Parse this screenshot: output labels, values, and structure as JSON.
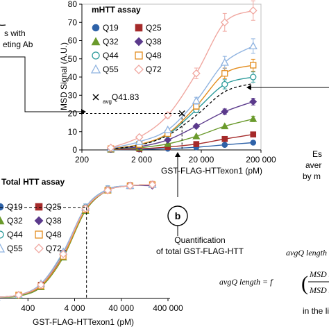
{
  "figure": {
    "annotations": {
      "left_top_lines": [
        "s with",
        "eting Ab"
      ],
      "b_label": "b",
      "quantification": [
        "Quantification",
        "of total GST-FLAG-HTT"
      ],
      "right_lines": [
        "Es",
        "aver",
        "by m"
      ],
      "formula_small": "avgQ length",
      "formula_main": "avgQ length = f",
      "frac_num": "MSD Signal with",
      "frac_den": "MSD Signal with r",
      "in_the": "in the li"
    },
    "colors": {
      "Q19": "#2e62a8",
      "Q25": "#a52a2a",
      "Q32": "#6a9a2c",
      "Q38": "#5b3a8c",
      "Q44": "#2a9a9a",
      "Q48": "#e38c1c",
      "Q55": "#8fb3e0",
      "Q72": "#f0a7a0",
      "ref": "#000000"
    },
    "icons": {
      "circle-marker": "filled circle",
      "square-marker": "filled square",
      "triangle-marker": "filled triangle",
      "diamond-marker": "filled diamond",
      "open-circle-marker": "open circle",
      "open-square-marker": "open square",
      "open-triangle-marker": "open triangle",
      "open-diamond-marker": "open diamond",
      "cross-marker": "x cross"
    }
  },
  "chart_data": [
    {
      "type": "scatter",
      "title": "mHTT assay",
      "xlabel": "GST-FLAG-HTTexon1 (pM)",
      "ylabel": "MSD Signal (A.U.)",
      "xscale": "log",
      "xlim": [
        200,
        200000
      ],
      "ylim": [
        0,
        80
      ],
      "xticks": [
        "200",
        "2 000",
        "20 000",
        "200 000"
      ],
      "yticks": [
        "0",
        "10",
        "20",
        "30",
        "40",
        "50",
        "60",
        "70",
        "80"
      ],
      "legend_position": "top-left",
      "grid": false,
      "x": [
        610,
        1830,
        5490,
        16500,
        49400,
        148000
      ],
      "series": [
        {
          "name": "Q19",
          "marker": "circle",
          "filled": true,
          "values": [
            0.1,
            0.3,
            0.7,
            1.5,
            2.8,
            4.0
          ]
        },
        {
          "name": "Q25",
          "marker": "square",
          "filled": true,
          "values": [
            0.2,
            0.6,
            1.6,
            3.2,
            6.0,
            8.5
          ]
        },
        {
          "name": "Q32",
          "marker": "triangle",
          "filled": true,
          "values": [
            0.3,
            1.2,
            3.3,
            7.5,
            13.0,
            17.0
          ]
        },
        {
          "name": "Q38",
          "marker": "diamond",
          "filled": true,
          "values": [
            0.5,
            1.8,
            5.5,
            13.0,
            21.0,
            26.5
          ]
        },
        {
          "name": "Q44",
          "marker": "circle",
          "filled": false,
          "values": [
            0.6,
            2.8,
            8.5,
            22.0,
            36.0,
            40.0
          ]
        },
        {
          "name": "Q48",
          "marker": "square",
          "filled": false,
          "values": [
            0.7,
            3.0,
            9.0,
            24.0,
            42.0,
            46.5
          ]
        },
        {
          "name": "Q55",
          "marker": "triangle",
          "filled": false,
          "values": [
            0.9,
            4.5,
            11.0,
            27.0,
            48.0,
            57.0
          ]
        },
        {
          "name": "Q72",
          "marker": "diamond",
          "filled": false,
          "values": [
            1.2,
            7.0,
            19.0,
            42.0,
            70.0,
            76.5
          ]
        }
      ],
      "reference": {
        "label": "avgQ41.83",
        "prefix": "avg",
        "suffix": "Q41.83",
        "marker": "cross",
        "x": 9500,
        "y": 20
      },
      "reference_curve": {
        "x": [
          610,
          1830,
          5490,
          16500,
          49400,
          148000
        ],
        "values": [
          0.6,
          2.6,
          8.0,
          19.0,
          32.0,
          36.5
        ]
      }
    },
    {
      "type": "scatter",
      "title": "Total HTT assay",
      "xlabel": "GST-FLAG-HTTexon1 (pM)",
      "xscale": "log",
      "xlim": [
        40,
        400000
      ],
      "ymax_normalized": 1.0,
      "xticks": [
        "400",
        "4 000",
        "40 000",
        "400 000"
      ],
      "legend_position": "top-left",
      "grid": false,
      "x": [
        84,
        253,
        760,
        2280,
        6840,
        20500,
        61600,
        185000
      ],
      "series": [
        {
          "name": "Q19",
          "marker": "circle",
          "filled": true,
          "values": [
            0.01,
            0.03,
            0.11,
            0.38,
            0.78,
            0.95,
            0.99,
            1.0
          ]
        },
        {
          "name": "Q25",
          "marker": "square",
          "filled": true,
          "values": [
            0.01,
            0.03,
            0.12,
            0.4,
            0.79,
            0.95,
            0.99,
            1.0
          ]
        },
        {
          "name": "Q32",
          "marker": "triangle",
          "filled": true,
          "values": [
            0.01,
            0.02,
            0.1,
            0.36,
            0.77,
            0.95,
            0.99,
            1.0
          ]
        },
        {
          "name": "Q38",
          "marker": "diamond",
          "filled": true,
          "values": [
            0.01,
            0.03,
            0.11,
            0.39,
            0.78,
            0.95,
            0.99,
            0.99
          ]
        },
        {
          "name": "Q44",
          "marker": "circle",
          "filled": false,
          "values": [
            0.01,
            0.03,
            0.12,
            0.4,
            0.8,
            0.96,
            0.99,
            1.0
          ]
        },
        {
          "name": "Q48",
          "marker": "square",
          "filled": false,
          "values": [
            0.01,
            0.03,
            0.11,
            0.37,
            0.78,
            0.95,
            0.99,
            1.0
          ]
        },
        {
          "name": "Q55",
          "marker": "triangle",
          "filled": false,
          "values": [
            0.01,
            0.03,
            0.13,
            0.41,
            0.8,
            0.96,
            0.99,
            1.0
          ]
        },
        {
          "name": "Q72",
          "marker": "diamond",
          "filled": false,
          "values": [
            0.01,
            0.03,
            0.12,
            0.39,
            0.79,
            0.95,
            0.99,
            1.0
          ]
        }
      ],
      "marker_x": 7200,
      "marker_y": 0.8
    }
  ]
}
